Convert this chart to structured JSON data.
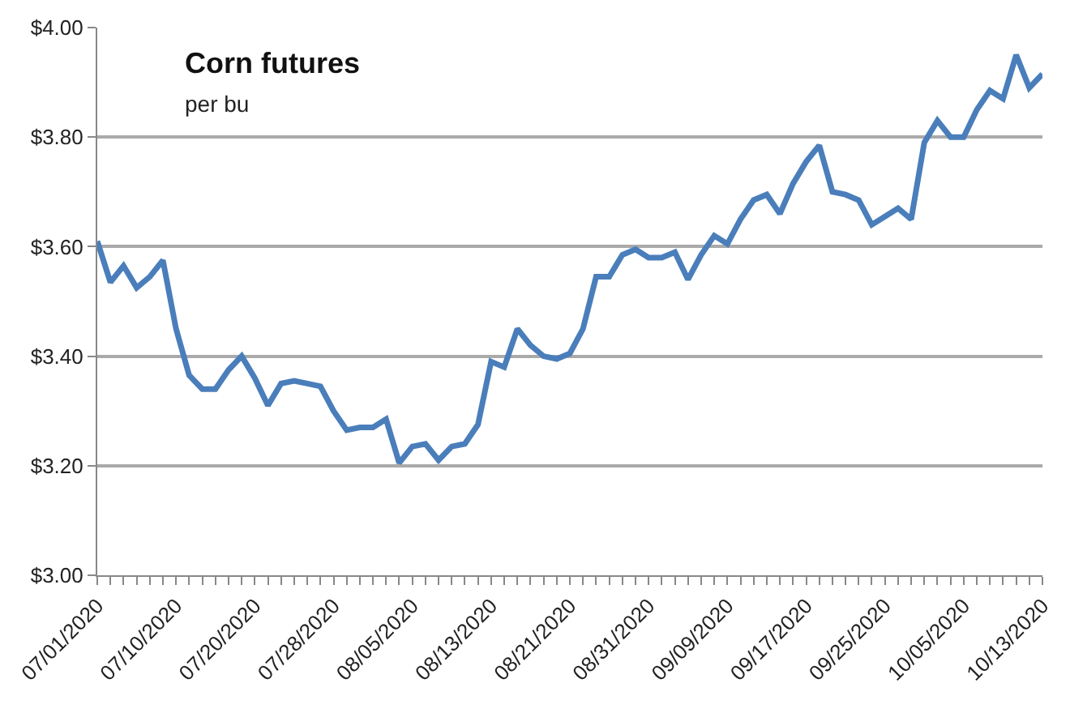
{
  "chart_data": {
    "type": "line",
    "title": "Corn futures",
    "subtitle": "per bu",
    "categories": [
      "07/01/2020",
      null,
      null,
      null,
      null,
      null,
      "07/10/2020",
      null,
      null,
      null,
      null,
      null,
      "07/20/2020",
      null,
      null,
      null,
      null,
      null,
      "07/28/2020",
      null,
      null,
      null,
      null,
      null,
      "08/05/2020",
      null,
      null,
      null,
      null,
      null,
      "08/13/2020",
      null,
      null,
      null,
      null,
      null,
      "08/21/2020",
      null,
      null,
      null,
      null,
      null,
      "08/31/2020",
      null,
      null,
      null,
      null,
      null,
      "09/09/2020",
      null,
      null,
      null,
      null,
      null,
      "09/17/2020",
      null,
      null,
      null,
      null,
      null,
      "09/25/2020",
      null,
      null,
      null,
      null,
      null,
      "10/05/2020",
      null,
      null,
      null,
      null,
      null,
      "10/13/2020"
    ],
    "series": [
      {
        "color": "#4a7ebb",
        "values": [
          3.61,
          3.535,
          3.565,
          3.525,
          3.545,
          3.575,
          3.45,
          3.365,
          3.34,
          3.34,
          3.375,
          3.4,
          3.36,
          3.31,
          3.35,
          3.355,
          3.35,
          3.345,
          3.3,
          3.265,
          3.27,
          3.27,
          3.285,
          3.205,
          3.235,
          3.24,
          3.21,
          3.235,
          3.24,
          3.275,
          3.39,
          3.38,
          3.45,
          3.42,
          3.4,
          3.395,
          3.405,
          3.45,
          3.545,
          3.545,
          3.585,
          3.595,
          3.58,
          3.58,
          3.59,
          3.54,
          3.585,
          3.62,
          3.605,
          3.65,
          3.685,
          3.695,
          3.66,
          3.715,
          3.755,
          3.785,
          3.7,
          3.695,
          3.685,
          3.64,
          3.655,
          3.67,
          3.65,
          3.79,
          3.83,
          3.8,
          3.8,
          3.85,
          3.885,
          3.87,
          3.95,
          3.89,
          3.915
        ]
      }
    ],
    "ylim": [
      3.0,
      4.0
    ],
    "yticks": [
      {
        "value": 3.0,
        "label": "$3.00"
      },
      {
        "value": 3.2,
        "label": "$3.20"
      },
      {
        "value": 3.4,
        "label": "$3.40"
      },
      {
        "value": 3.6,
        "label": "$3.60"
      },
      {
        "value": 3.8,
        "label": "$3.80"
      },
      {
        "value": 4.0,
        "label": "$4.00"
      }
    ],
    "grid": "y",
    "legend": false,
    "marker": "none",
    "line_style": "solid"
  }
}
